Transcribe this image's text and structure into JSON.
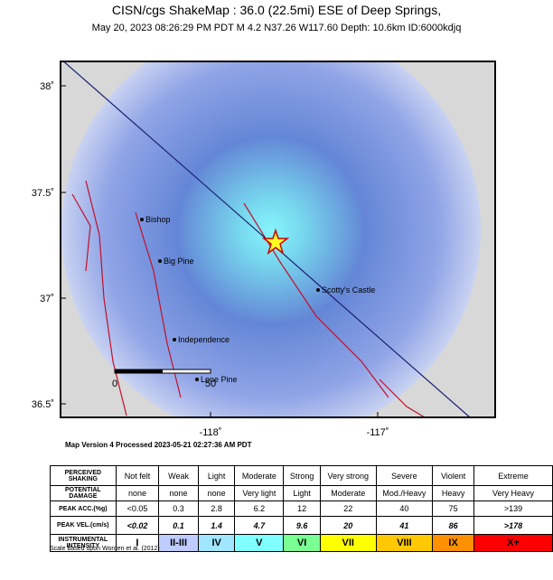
{
  "header": {
    "title": "CISN/cgs ShakeMap : 36.0 (22.5mi) ESE of Deep Springs,",
    "subtitle": "May 20, 2023 08:26:29 PM PDT   M 4.2   N37.26 W117.60   Depth: 10.6km   ID:6000kdjq"
  },
  "map": {
    "lat_ticks": [
      "38˚",
      "37.5˚",
      "37˚",
      "36.5˚"
    ],
    "lon_ticks": [
      "-118˚",
      "-117˚"
    ],
    "places": [
      "Bishop",
      "Big Pine",
      "Scotty's Castle",
      "Independence",
      "Lone Pine"
    ],
    "scale_labels": [
      "0",
      "50"
    ]
  },
  "version": "Map Version 4 Processed 2023-05-21 02:27:36 AM PDT",
  "legend": {
    "rows": [
      [
        "PERCEIVED SHAKING",
        "Not felt",
        "Weak",
        "Light",
        "Moderate",
        "Strong",
        "Very strong",
        "Severe",
        "Violent",
        "Extreme"
      ],
      [
        "POTENTIAL DAMAGE",
        "none",
        "none",
        "none",
        "Very light",
        "Light",
        "Moderate",
        "Mod./Heavy",
        "Heavy",
        "Very Heavy"
      ],
      [
        "PEAK ACC.(%g)",
        "<0.05",
        "0.3",
        "2.8",
        "6.2",
        "12",
        "22",
        "40",
        "75",
        ">139"
      ],
      [
        "PEAK VEL.(cm/s)",
        "<0.02",
        "0.1",
        "1.4",
        "4.7",
        "9.6",
        "20",
        "41",
        "86",
        ">178"
      ],
      [
        "INSTRUMENTAL INTENSITY",
        "I",
        "II-III",
        "IV",
        "V",
        "VI",
        "VII",
        "VIII",
        "IX",
        "X+"
      ]
    ],
    "intensity_colors": [
      "#ffffff",
      "#bfccff",
      "#a0e6ff",
      "#80ffff",
      "#7aff93",
      "#ffff00",
      "#ffc800",
      "#ff9100",
      "#ff0000"
    ],
    "note": "Scale based upon Worden et al. (2012)"
  }
}
